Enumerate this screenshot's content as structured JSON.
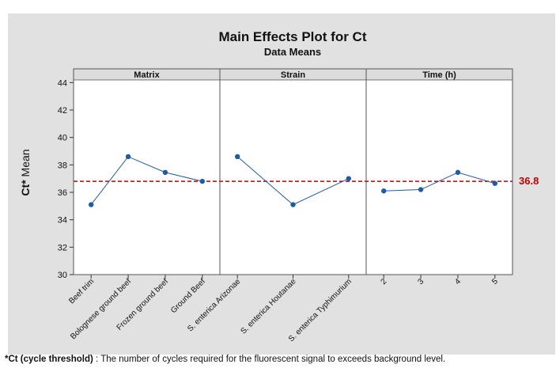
{
  "chart_data": {
    "type": "line",
    "title": "Main Effects Plot for Ct",
    "subtitle": "Data Means",
    "ylabel_main": "Ct*",
    "ylabel_rest": " Mean",
    "ylim": [
      30,
      45
    ],
    "yticks": [
      30,
      32,
      34,
      36,
      38,
      40,
      42,
      44
    ],
    "reference_line": {
      "value": 36.8,
      "label": "36.8",
      "color": "#c00000",
      "style": "dashed"
    },
    "series_color": "#1f5aa6",
    "panels": [
      {
        "name": "Matrix",
        "categories": [
          "Beef trim",
          "Bolognese ground beef",
          "Frozen ground beef",
          "Ground Beef"
        ],
        "values": [
          35.1,
          38.6,
          37.45,
          36.8
        ]
      },
      {
        "name": "Strain",
        "categories": [
          "S. enterica Arizonae",
          "S. enterica Houtanae",
          "S. enterica Typhimurium"
        ],
        "values": [
          38.6,
          35.1,
          37.0
        ]
      },
      {
        "name": "Time (h)",
        "categories": [
          "2",
          "3",
          "4",
          "5"
        ],
        "values": [
          36.1,
          36.2,
          37.45,
          36.65
        ]
      }
    ],
    "grid": false
  },
  "footnote": {
    "bold": "*Ct (cycle threshold)",
    "text": " : The number of cycles required for the fluorescent signal to exceeds background level."
  }
}
